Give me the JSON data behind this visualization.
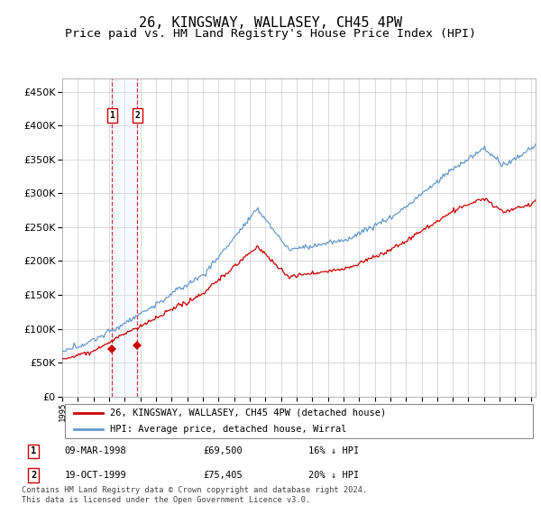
{
  "title": "26, KINGSWAY, WALLASEY, CH45 4PW",
  "subtitle": "Price paid vs. HM Land Registry's House Price Index (HPI)",
  "ylim": [
    0,
    470000
  ],
  "yticks": [
    0,
    50000,
    100000,
    150000,
    200000,
    250000,
    300000,
    350000,
    400000,
    450000
  ],
  "legend_line1": "26, KINGSWAY, WALLASEY, CH45 4PW (detached house)",
  "legend_line2": "HPI: Average price, detached house, Wirral",
  "sale1_date": "09-MAR-1998",
  "sale1_price": "£69,500",
  "sale1_hpi": "16% ↓ HPI",
  "sale1_value": 69500,
  "sale1_year": 1998.19,
  "sale2_date": "19-OCT-1999",
  "sale2_price": "£75,405",
  "sale2_hpi": "20% ↓ HPI",
  "sale2_value": 75405,
  "sale2_year": 1999.8,
  "footer": "Contains HM Land Registry data © Crown copyright and database right 2024.\nThis data is licensed under the Open Government Licence v3.0.",
  "line_color_red": "#cc0000",
  "line_color_blue": "#6699cc",
  "shade_color": "#ddeeff",
  "box_color": "#cc0000",
  "title_fontsize": 11,
  "subtitle_fontsize": 9.5,
  "xlim_left": 1995,
  "xlim_right": 2025.3
}
